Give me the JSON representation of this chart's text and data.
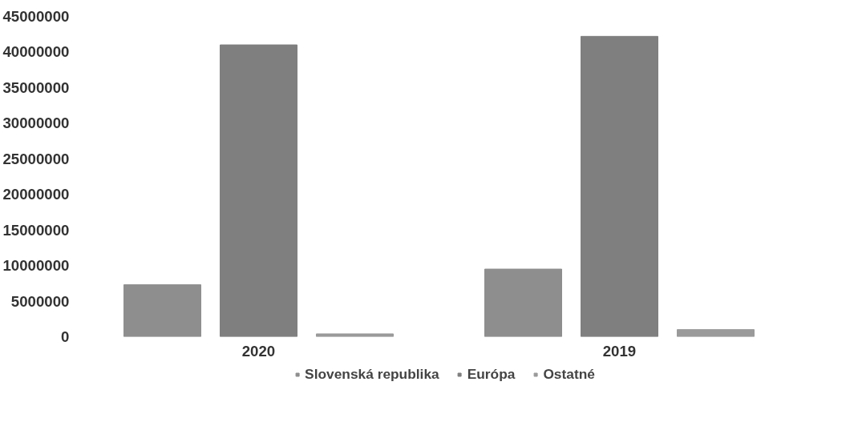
{
  "chart_data": {
    "type": "bar",
    "categories": [
      "2020",
      "2019"
    ],
    "series": [
      {
        "name": "Slovenská republika",
        "color": "#8e8e8e",
        "values": [
          7300000,
          9500000
        ]
      },
      {
        "name": "Európa",
        "color": "#7f7f7f",
        "values": [
          41000000,
          42200000
        ]
      },
      {
        "name": "Ostatné",
        "color": "#9a9a9a",
        "values": [
          400000,
          1000000
        ]
      }
    ],
    "ylim": [
      0,
      45000000
    ],
    "yticks": [
      0,
      5000000,
      10000000,
      15000000,
      20000000,
      25000000,
      30000000,
      35000000,
      40000000,
      45000000
    ],
    "grid": false,
    "legend": "bottom"
  }
}
